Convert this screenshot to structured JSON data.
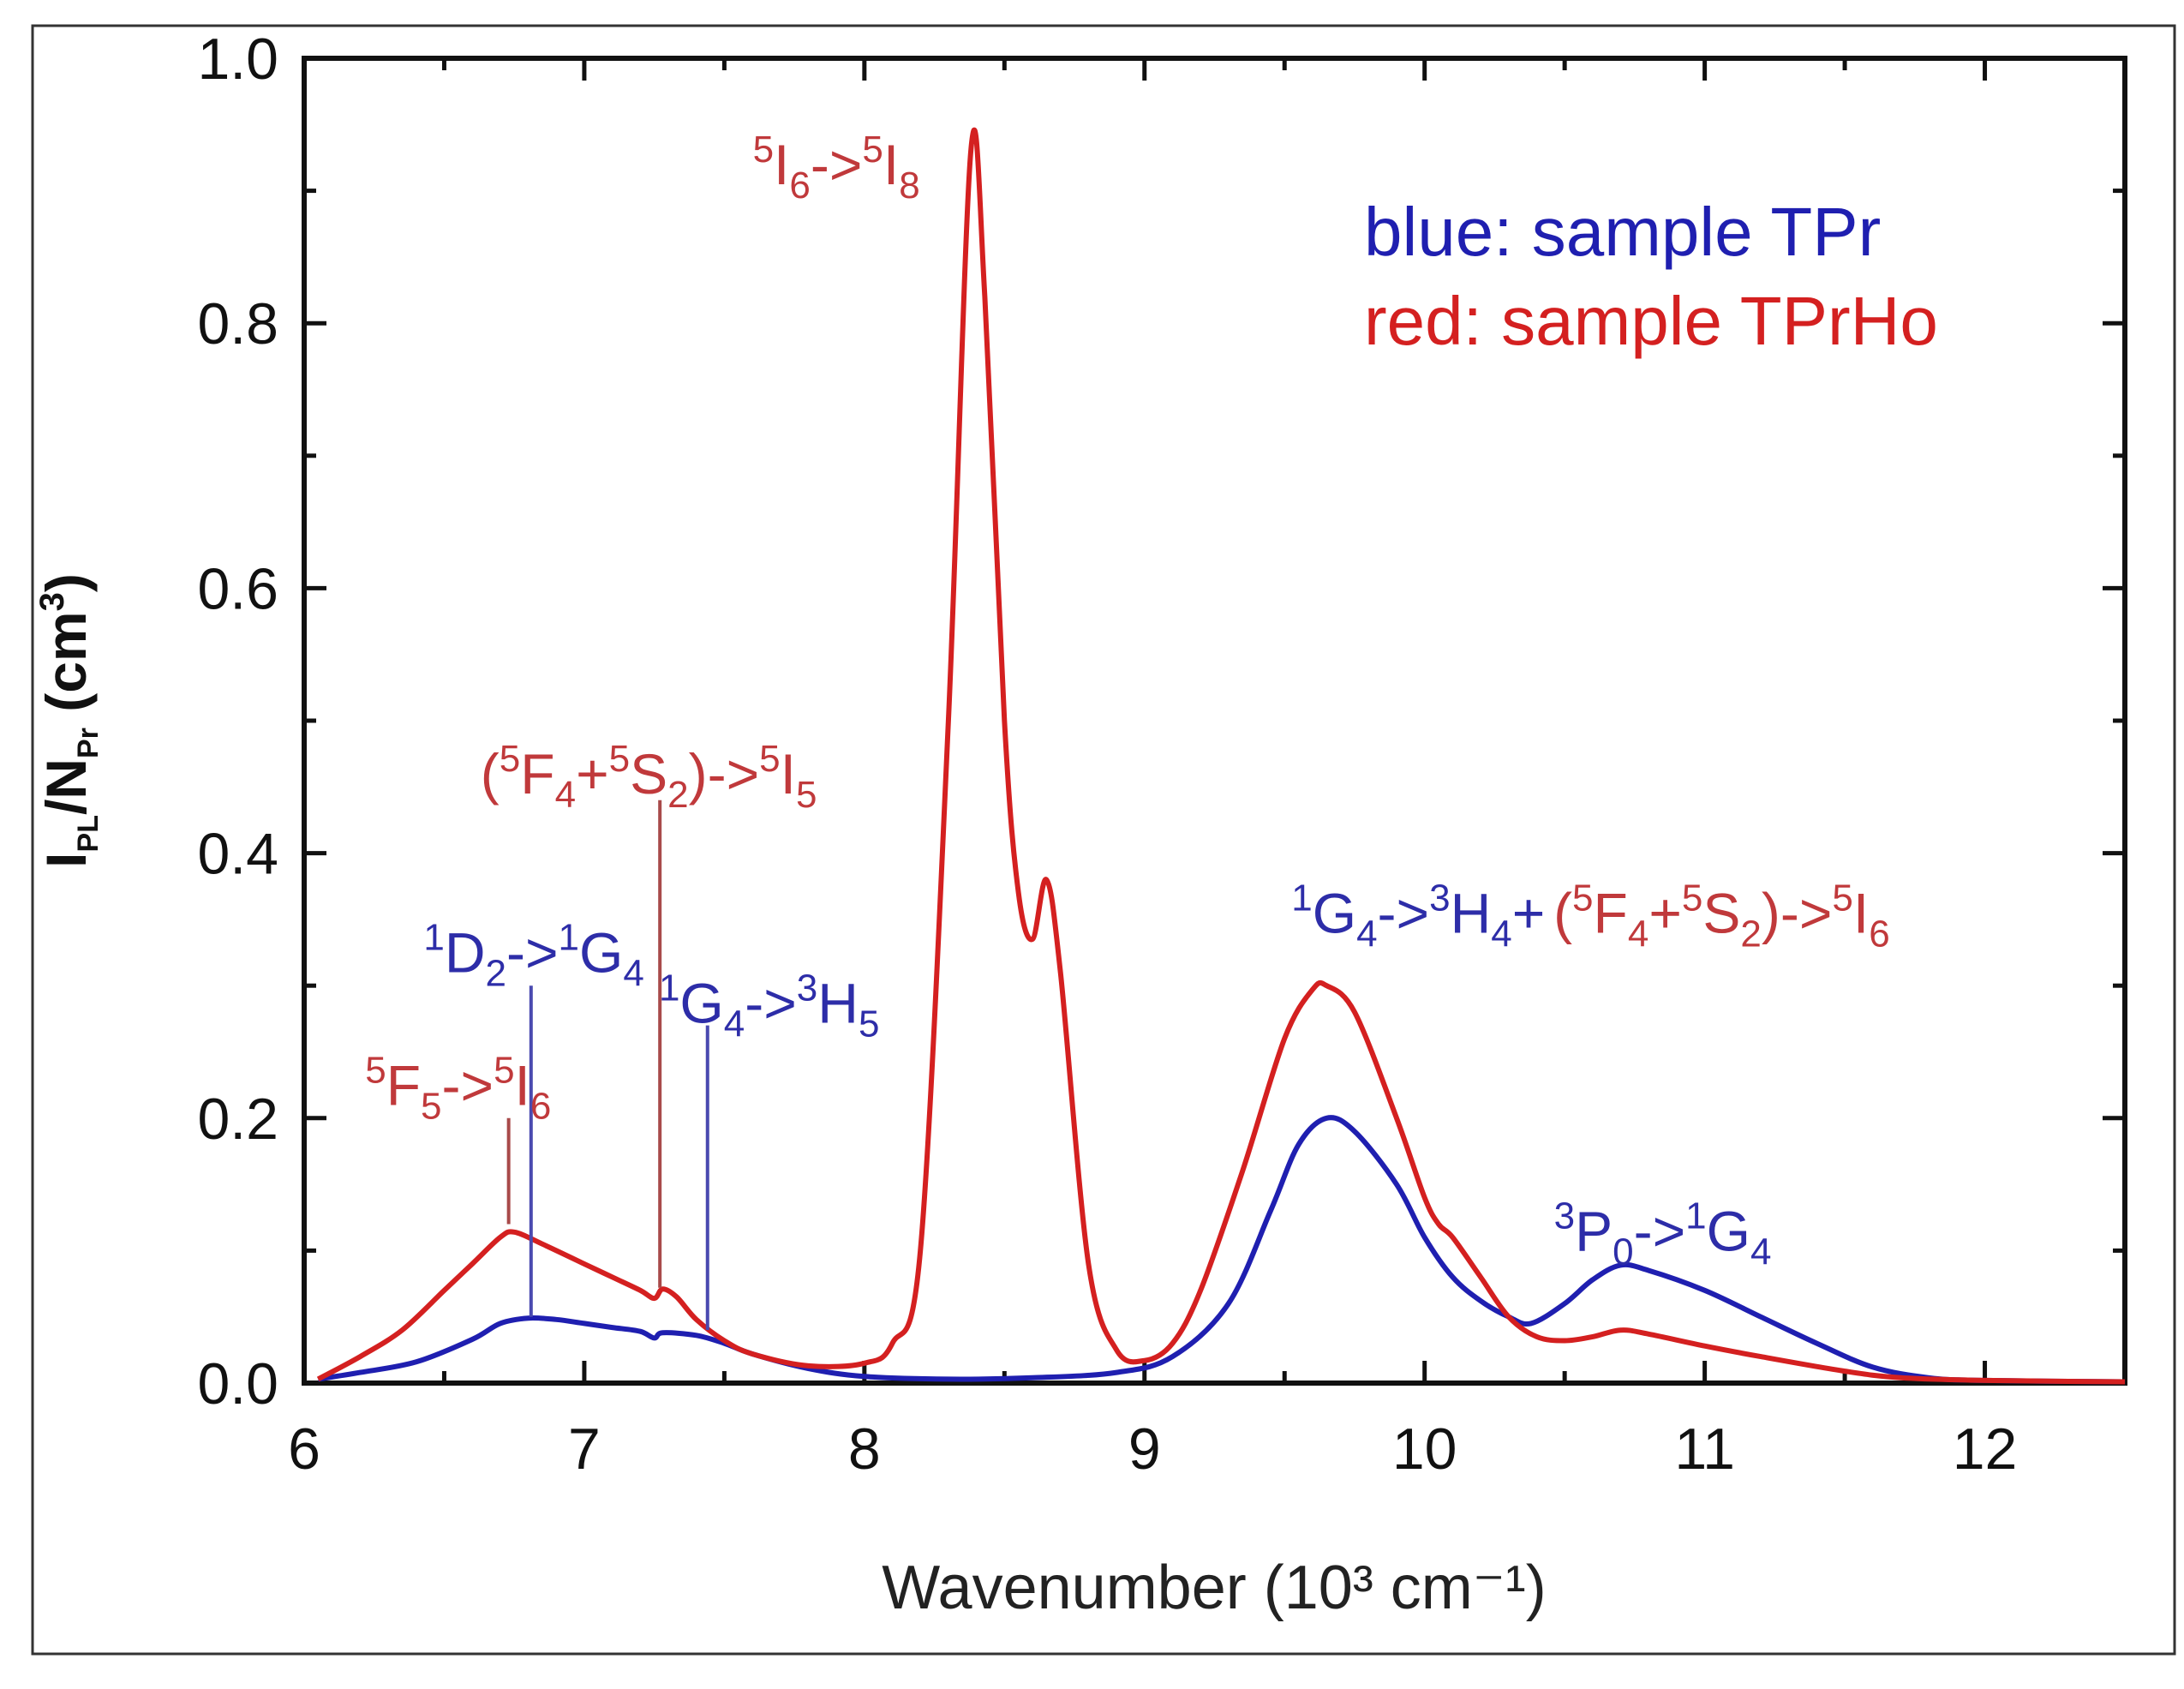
{
  "chart_data": {
    "type": "line",
    "xlabel": "Wavenumber (10³ cm⁻¹)",
    "ylabel": {
      "I": "I",
      "PL": "PL",
      "slash": "/N",
      "Pr": "Pr",
      "unit": " (cm",
      "exp": "3",
      "close": ")"
    },
    "xlim": [
      6,
      12.5
    ],
    "ylim": [
      0,
      1.0
    ],
    "xticks": [
      6,
      7,
      8,
      9,
      10,
      11,
      12
    ],
    "yticks": [
      0.0,
      0.2,
      0.4,
      0.6,
      0.8,
      1.0
    ],
    "xtick_labels": [
      "6",
      "7",
      "8",
      "9",
      "10",
      "11",
      "12"
    ],
    "ytick_labels": [
      "0.0",
      "0.2",
      "0.4",
      "0.6",
      "0.8",
      "1.0"
    ],
    "colors": {
      "blue": "#1f1fb0",
      "red": "#d42020",
      "ann_red": "#c0393b",
      "ann_blue": "#2d2da8",
      "line_red": "#a84a4a",
      "line_blue": "#4a4ab0"
    },
    "legend": {
      "blue_label": "blue: sample TPr",
      "red_label": "red: sample TPrHo"
    },
    "series": [
      {
        "name": "TPr",
        "color": "blue",
        "points": [
          [
            6.05,
            0.003
          ],
          [
            6.2,
            0.008
          ],
          [
            6.4,
            0.016
          ],
          [
            6.6,
            0.033
          ],
          [
            6.7,
            0.045
          ],
          [
            6.8,
            0.049
          ],
          [
            6.9,
            0.048
          ],
          [
            7.0,
            0.045
          ],
          [
            7.1,
            0.042
          ],
          [
            7.2,
            0.039
          ],
          [
            7.25,
            0.034
          ],
          [
            7.28,
            0.038
          ],
          [
            7.4,
            0.036
          ],
          [
            7.5,
            0.03
          ],
          [
            7.6,
            0.022
          ],
          [
            7.8,
            0.011
          ],
          [
            8.0,
            0.005
          ],
          [
            8.3,
            0.003
          ],
          [
            8.6,
            0.004
          ],
          [
            8.9,
            0.008
          ],
          [
            9.1,
            0.02
          ],
          [
            9.3,
            0.06
          ],
          [
            9.45,
            0.13
          ],
          [
            9.55,
            0.18
          ],
          [
            9.65,
            0.2
          ],
          [
            9.75,
            0.19
          ],
          [
            9.9,
            0.15
          ],
          [
            10.0,
            0.11
          ],
          [
            10.1,
            0.08
          ],
          [
            10.2,
            0.062
          ],
          [
            10.3,
            0.05
          ],
          [
            10.38,
            0.045
          ],
          [
            10.5,
            0.06
          ],
          [
            10.6,
            0.078
          ],
          [
            10.7,
            0.089
          ],
          [
            10.8,
            0.085
          ],
          [
            11.0,
            0.07
          ],
          [
            11.2,
            0.05
          ],
          [
            11.4,
            0.03
          ],
          [
            11.6,
            0.012
          ],
          [
            11.8,
            0.004
          ],
          [
            12.0,
            0.002
          ],
          [
            12.5,
            0.001
          ]
        ]
      },
      {
        "name": "TPrHo",
        "color": "red",
        "points": [
          [
            6.05,
            0.003
          ],
          [
            6.2,
            0.02
          ],
          [
            6.35,
            0.04
          ],
          [
            6.5,
            0.07
          ],
          [
            6.6,
            0.09
          ],
          [
            6.7,
            0.11
          ],
          [
            6.75,
            0.114
          ],
          [
            6.85,
            0.105
          ],
          [
            7.0,
            0.09
          ],
          [
            7.1,
            0.08
          ],
          [
            7.2,
            0.07
          ],
          [
            7.25,
            0.064
          ],
          [
            7.28,
            0.071
          ],
          [
            7.33,
            0.065
          ],
          [
            7.4,
            0.048
          ],
          [
            7.5,
            0.032
          ],
          [
            7.6,
            0.022
          ],
          [
            7.8,
            0.013
          ],
          [
            8.0,
            0.015
          ],
          [
            8.1,
            0.03
          ],
          [
            8.2,
            0.1
          ],
          [
            8.3,
            0.5
          ],
          [
            8.38,
            0.93
          ],
          [
            8.43,
            0.82
          ],
          [
            8.5,
            0.5
          ],
          [
            8.55,
            0.37
          ],
          [
            8.6,
            0.335
          ],
          [
            8.65,
            0.38
          ],
          [
            8.7,
            0.31
          ],
          [
            8.8,
            0.09
          ],
          [
            8.9,
            0.025
          ],
          [
            9.0,
            0.017
          ],
          [
            9.1,
            0.03
          ],
          [
            9.2,
            0.07
          ],
          [
            9.35,
            0.16
          ],
          [
            9.5,
            0.26
          ],
          [
            9.6,
            0.297
          ],
          [
            9.65,
            0.3
          ],
          [
            9.75,
            0.28
          ],
          [
            9.9,
            0.2
          ],
          [
            10.0,
            0.14
          ],
          [
            10.05,
            0.12
          ],
          [
            10.1,
            0.11
          ],
          [
            10.2,
            0.08
          ],
          [
            10.3,
            0.05
          ],
          [
            10.4,
            0.035
          ],
          [
            10.5,
            0.032
          ],
          [
            10.6,
            0.035
          ],
          [
            10.7,
            0.04
          ],
          [
            10.8,
            0.037
          ],
          [
            11.0,
            0.028
          ],
          [
            11.2,
            0.02
          ],
          [
            11.5,
            0.009
          ],
          [
            11.7,
            0.004
          ],
          [
            12.0,
            0.002
          ],
          [
            12.5,
            0.001
          ]
        ]
      }
    ],
    "annotations": [
      {
        "id": "ann-5f5",
        "color": "ann_red",
        "x": 6.55,
        "y": 0.21,
        "align": "middle",
        "parts": [
          [
            "sup",
            "5"
          ],
          [
            "n",
            "F"
          ],
          [
            "sub",
            "5"
          ],
          [
            "n",
            "->"
          ],
          [
            "sup",
            "5"
          ],
          [
            "n",
            "I"
          ],
          [
            "sub",
            "6"
          ]
        ]
      },
      {
        "id": "ann-1d2",
        "color": "ann_blue",
        "x": 6.82,
        "y": 0.31,
        "align": "middle",
        "parts": [
          [
            "sup",
            "1"
          ],
          [
            "n",
            "D"
          ],
          [
            "sub",
            "2"
          ],
          [
            "n",
            "->"
          ],
          [
            "sup",
            "1"
          ],
          [
            "n",
            "G"
          ],
          [
            "sub",
            "4"
          ]
        ]
      },
      {
        "id": "ann-5f4-5i5",
        "color": "ann_red",
        "x": 7.23,
        "y": 0.445,
        "align": "middle",
        "parts": [
          [
            "n",
            "("
          ],
          [
            "sup",
            "5"
          ],
          [
            "n",
            "F"
          ],
          [
            "sub",
            "4"
          ],
          [
            "n",
            "+"
          ],
          [
            "sup",
            "5"
          ],
          [
            "n",
            "S"
          ],
          [
            "sub",
            "2"
          ],
          [
            "n",
            ")->"
          ],
          [
            "sup",
            "5"
          ],
          [
            "n",
            "I"
          ],
          [
            "sub",
            "5"
          ]
        ]
      },
      {
        "id": "ann-1g4-3h5",
        "color": "ann_blue",
        "x": 7.66,
        "y": 0.272,
        "align": "middle",
        "parts": [
          [
            "sup",
            "1"
          ],
          [
            "n",
            "G"
          ],
          [
            "sub",
            "4"
          ],
          [
            "n",
            "->"
          ],
          [
            "sup",
            "3"
          ],
          [
            "n",
            "H"
          ],
          [
            "sub",
            "5"
          ]
        ]
      },
      {
        "id": "ann-5i6",
        "color": "ann_red",
        "x": 7.9,
        "y": 0.905,
        "align": "middle",
        "parts": [
          [
            "sup",
            "5"
          ],
          [
            "n",
            "I"
          ],
          [
            "sub",
            "6"
          ],
          [
            "n",
            "->"
          ],
          [
            "sup",
            "5"
          ],
          [
            "n",
            "I"
          ],
          [
            "sub",
            "8"
          ]
        ]
      },
      {
        "id": "ann-1g4-3h4",
        "color": "ann_blue",
        "x": 10.43,
        "y": 0.34,
        "align": "end",
        "parts": [
          [
            "sup",
            "1"
          ],
          [
            "n",
            "G"
          ],
          [
            "sub",
            "4"
          ],
          [
            "n",
            "->"
          ],
          [
            "sup",
            "3"
          ],
          [
            "n",
            "H"
          ],
          [
            "sub",
            "4"
          ],
          [
            "n",
            "+"
          ]
        ]
      },
      {
        "id": "ann-5f4-5i6",
        "color": "ann_red",
        "x": 10.46,
        "y": 0.34,
        "align": "start",
        "parts": [
          [
            "n",
            "("
          ],
          [
            "sup",
            "5"
          ],
          [
            "n",
            "F"
          ],
          [
            "sub",
            "4"
          ],
          [
            "n",
            "+"
          ],
          [
            "sup",
            "5"
          ],
          [
            "n",
            "S"
          ],
          [
            "sub",
            "2"
          ],
          [
            "n",
            ")->"
          ],
          [
            "sup",
            "5"
          ],
          [
            "n",
            "I"
          ],
          [
            "sub",
            "6"
          ]
        ]
      },
      {
        "id": "ann-3p0",
        "color": "ann_blue",
        "x": 10.85,
        "y": 0.1,
        "align": "middle",
        "parts": [
          [
            "sup",
            "3"
          ],
          [
            "n",
            "P"
          ],
          [
            "sub",
            "0"
          ],
          [
            "n",
            "->"
          ],
          [
            "sup",
            "1"
          ],
          [
            "n",
            "G"
          ],
          [
            "sub",
            "4"
          ]
        ]
      }
    ],
    "marker_lines": [
      {
        "x": 6.73,
        "y0": 0.12,
        "y1": 0.2,
        "color": "line_red"
      },
      {
        "x": 6.81,
        "y0": 0.05,
        "y1": 0.3,
        "color": "line_blue"
      },
      {
        "x": 7.27,
        "y0": 0.072,
        "y1": 0.44,
        "color": "line_red"
      },
      {
        "x": 7.44,
        "y0": 0.04,
        "y1": 0.27,
        "color": "line_blue"
      }
    ]
  }
}
